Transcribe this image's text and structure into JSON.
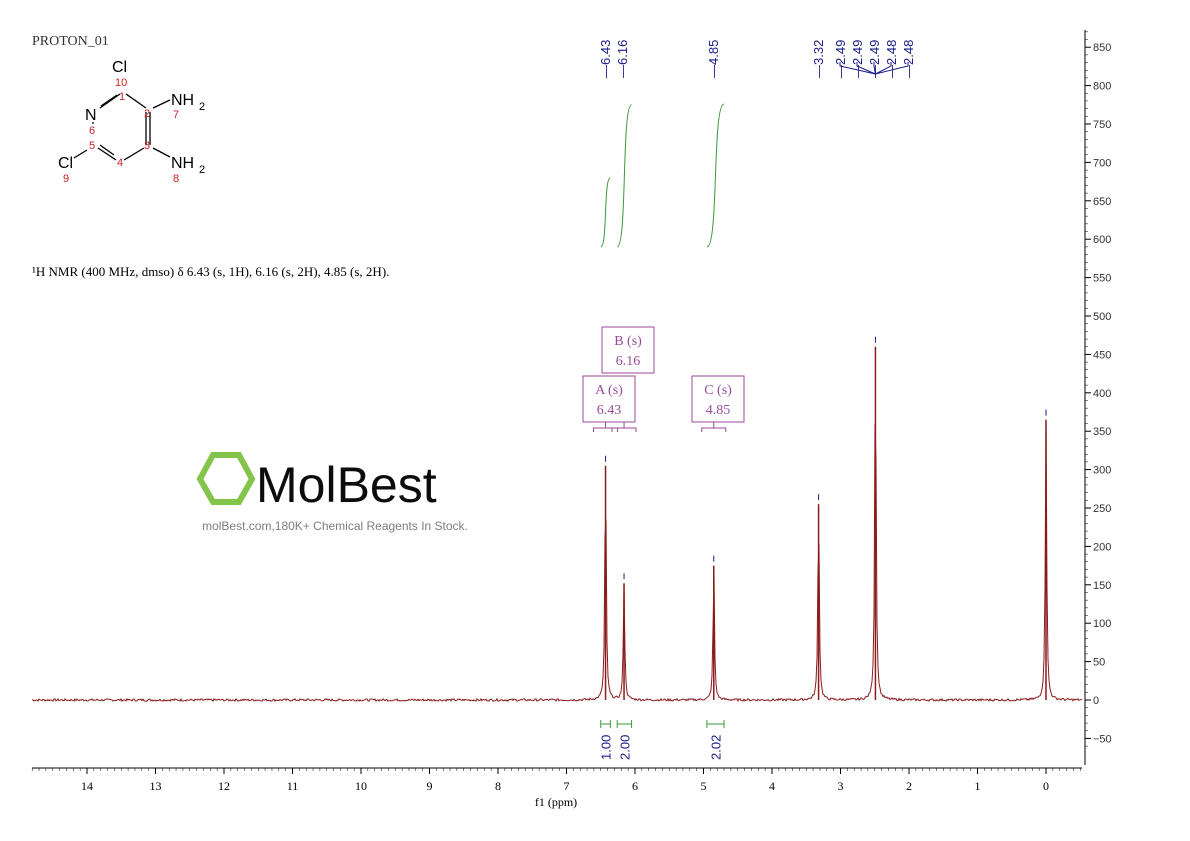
{
  "chart_data": {
    "type": "line",
    "title": "PROTON_01",
    "xlabel": "f1 (ppm)",
    "ylabel": "",
    "xlim": [
      14.8,
      -0.53
    ],
    "ylim": [
      -70,
      870
    ],
    "x_ticks": [
      14,
      13,
      12,
      11,
      10,
      9,
      8,
      7,
      6,
      5,
      4,
      3,
      2,
      1,
      0
    ],
    "y_ticks": [
      -50,
      0,
      50,
      100,
      150,
      200,
      250,
      300,
      350,
      400,
      450,
      500,
      550,
      600,
      650,
      700,
      750,
      800,
      850
    ],
    "grid": false,
    "peaks": [
      {
        "ppm": 6.43,
        "height": 305
      },
      {
        "ppm": 6.16,
        "height": 152
      },
      {
        "ppm": 4.85,
        "height": 175
      },
      {
        "ppm": 3.32,
        "height": 255
      },
      {
        "ppm": 2.49,
        "height": 460
      },
      {
        "ppm": 0.0,
        "height": 365
      }
    ],
    "peak_labels": [
      "6.43",
      "6.16",
      "4.85",
      "3.32",
      "2.49",
      "2.49",
      "2.49",
      "2.48",
      "2.48"
    ],
    "peak_label_ppm": [
      6.43,
      6.16,
      4.85,
      3.32,
      2.49,
      2.49,
      2.49,
      2.48,
      2.48
    ],
    "integrals": [
      {
        "from": 6.5,
        "to": 6.36,
        "value": "1.00",
        "curve_bottom": 590,
        "curve_top": 680
      },
      {
        "from": 6.26,
        "to": 6.05,
        "value": "2.00",
        "curve_bottom": 590,
        "curve_top": 775
      },
      {
        "from": 4.95,
        "to": 4.7,
        "value": "2.02",
        "curve_bottom": 590,
        "curve_top": 776
      }
    ],
    "multiplets": [
      {
        "name": "A (s)",
        "shift": "6.43",
        "ppm": 6.43
      },
      {
        "name": "B (s)",
        "shift": "6.16",
        "ppm": 6.16
      },
      {
        "name": "C (s)",
        "shift": "4.85",
        "ppm": 4.85
      }
    ],
    "annotation": "¹H NMR (400 MHz, dmso) δ 6.43 (s, 1H), 6.16 (s, 2H), 4.85 (s, 2H).",
    "colors": {
      "spectrum": "#8b1a1a",
      "integral": "#3a9a3a",
      "peak_label": "#1a1a8b",
      "multiplet": "#9a4a9a",
      "atom_number": "#cc2222"
    }
  },
  "structure": {
    "atoms": [
      "Cl",
      "N",
      "NH",
      "2",
      "NH",
      "2",
      "Cl"
    ],
    "numbers": [
      "10",
      "1",
      "2",
      "7",
      "6",
      "5",
      "3",
      "4",
      "9",
      "8"
    ]
  },
  "watermark": {
    "brand": "MolBest",
    "tagline": "molBest.com,180K+ Chemical Reagents In Stock."
  }
}
